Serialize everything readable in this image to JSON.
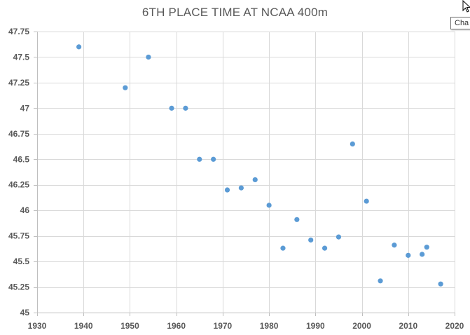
{
  "chart_data": {
    "type": "scatter",
    "title": "6TH PLACE TIME AT NCAA 400m",
    "xlabel": "",
    "ylabel": "",
    "xlim": [
      1930,
      2020
    ],
    "ylim": [
      45,
      47.75
    ],
    "x_ticks": [
      1930,
      1940,
      1950,
      1960,
      1970,
      1980,
      1990,
      2000,
      2010,
      2020
    ],
    "x_tick_labels": [
      "1930",
      "1940",
      "1950",
      "1960",
      "1970",
      "1980",
      "1990",
      "2000",
      "2010",
      "2020"
    ],
    "y_ticks": [
      45,
      45.25,
      45.5,
      45.75,
      46,
      46.25,
      46.5,
      46.75,
      47,
      47.25,
      47.5,
      47.75
    ],
    "y_tick_labels": [
      "45",
      "45.25",
      "45.5",
      "45.75",
      "46",
      "46.25",
      "46.5",
      "46.75",
      "47",
      "47.25",
      "47.5",
      "47.75"
    ],
    "grid": true,
    "marker_color": "#5B9BD5",
    "points": [
      {
        "x": 1939,
        "y": 47.6
      },
      {
        "x": 1949,
        "y": 47.2
      },
      {
        "x": 1954,
        "y": 47.5
      },
      {
        "x": 1959,
        "y": 47.0
      },
      {
        "x": 1962,
        "y": 47.0
      },
      {
        "x": 1965,
        "y": 46.5
      },
      {
        "x": 1968,
        "y": 46.5
      },
      {
        "x": 1971,
        "y": 46.2
      },
      {
        "x": 1974,
        "y": 46.22
      },
      {
        "x": 1977,
        "y": 46.3
      },
      {
        "x": 1980,
        "y": 46.05
      },
      {
        "x": 1983,
        "y": 45.63
      },
      {
        "x": 1986,
        "y": 45.91
      },
      {
        "x": 1989,
        "y": 45.71
      },
      {
        "x": 1992,
        "y": 45.63
      },
      {
        "x": 1995,
        "y": 45.74
      },
      {
        "x": 1998,
        "y": 46.65
      },
      {
        "x": 2001,
        "y": 46.09
      },
      {
        "x": 2004,
        "y": 45.31
      },
      {
        "x": 2007,
        "y": 45.66
      },
      {
        "x": 2010,
        "y": 45.56
      },
      {
        "x": 2013,
        "y": 45.57
      },
      {
        "x": 2014,
        "y": 45.64
      },
      {
        "x": 2017,
        "y": 45.28
      }
    ]
  },
  "tooltip": {
    "text": "Cha"
  },
  "icons": {
    "cursor": "mouse-pointer-icon"
  }
}
